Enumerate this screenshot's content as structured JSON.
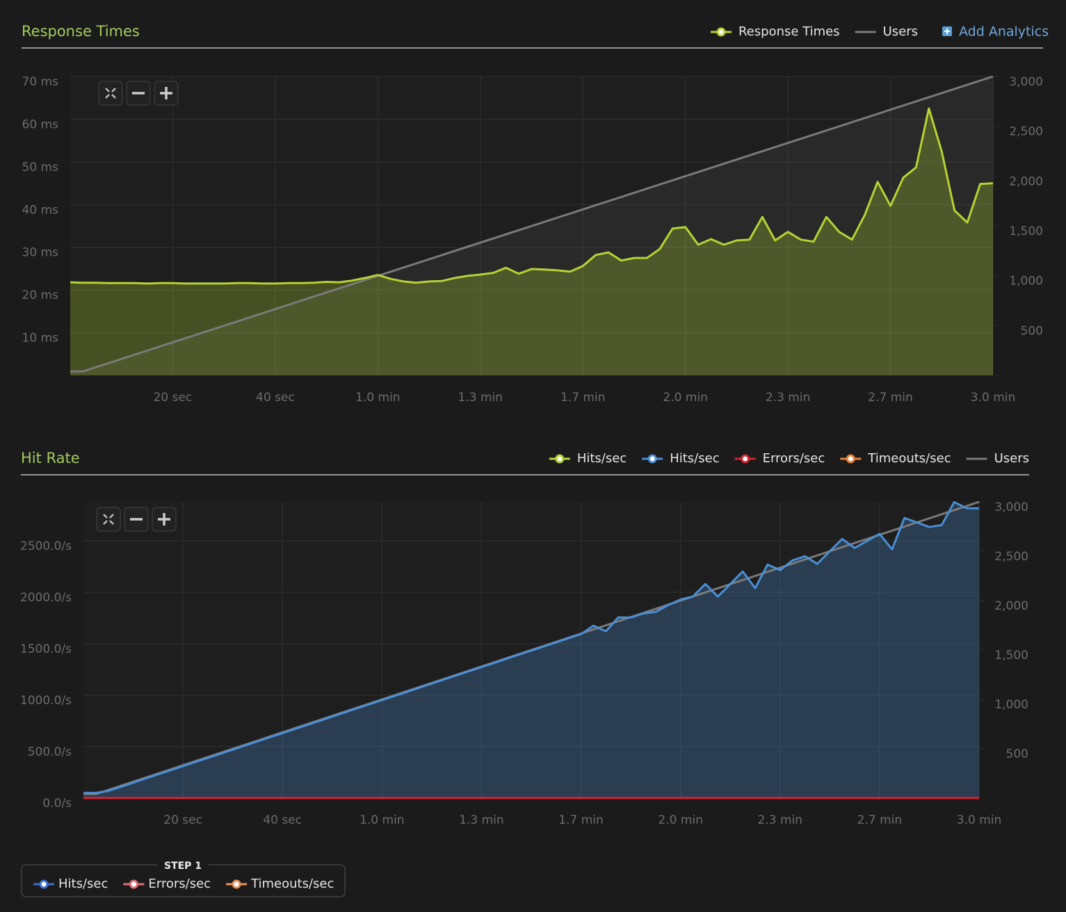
{
  "chart_data": [
    {
      "type": "line",
      "title": "Response Times",
      "x": [
        0,
        2.5,
        5,
        7.5,
        10,
        12.5,
        15,
        17.5,
        20,
        22.5,
        25,
        27.5,
        30,
        32.5,
        35,
        37.5,
        40,
        42.5,
        45,
        47.5,
        50,
        52.5,
        55,
        57.5,
        60,
        62.5,
        65,
        67.5,
        70,
        72.5,
        75,
        77.5,
        80,
        82.5,
        85,
        87.5,
        90,
        92.5,
        95,
        97.5,
        100,
        102.5,
        105,
        107.5,
        110,
        112.5,
        115,
        117.5,
        120,
        122.5,
        125,
        127.5,
        130,
        132.5,
        135,
        137.5,
        140,
        142.5,
        145,
        147.5,
        150,
        152.5,
        155,
        157.5,
        160,
        162.5,
        165,
        167.5,
        170,
        172.5,
        175,
        177.5,
        180
      ],
      "xlim": [
        0,
        180
      ],
      "xticks": [
        {
          "value": 20,
          "label": "20 sec"
        },
        {
          "value": 40,
          "label": "40 sec"
        },
        {
          "value": 60,
          "label": "1.0 min"
        },
        {
          "value": 80,
          "label": "1.3 min"
        },
        {
          "value": 100,
          "label": "1.7 min"
        },
        {
          "value": 120,
          "label": "2.0 min"
        },
        {
          "value": 140,
          "label": "2.3 min"
        },
        {
          "value": 160,
          "label": "2.7 min"
        },
        {
          "value": 180,
          "label": "3.0 min"
        }
      ],
      "ylim": [
        0,
        70
      ],
      "yticks": [
        {
          "value": 10,
          "label": "10 ms"
        },
        {
          "value": 20,
          "label": "20 ms"
        },
        {
          "value": 30,
          "label": "30 ms"
        },
        {
          "value": 40,
          "label": "40 ms"
        },
        {
          "value": 50,
          "label": "50 ms"
        },
        {
          "value": 60,
          "label": "60 ms"
        },
        {
          "value": 70,
          "label": "70 ms"
        }
      ],
      "y2lim": [
        0,
        3000
      ],
      "y2ticks": [
        500,
        {
          "value": 1000,
          "label": "1,000"
        },
        {
          "value": 1500,
          "label": "1,500"
        },
        {
          "value": 2000,
          "label": "2,000"
        },
        {
          "value": 2500,
          "label": "2,500"
        },
        {
          "value": 3000,
          "label": "3,000"
        }
      ],
      "grid": true,
      "series": [
        {
          "name": "Response Times",
          "color": "#b5d334",
          "area": true,
          "values": [
            21.8,
            21.7,
            21.7,
            21.6,
            21.6,
            21.6,
            21.5,
            21.6,
            21.6,
            21.5,
            21.5,
            21.5,
            21.5,
            21.6,
            21.6,
            21.5,
            21.5,
            21.6,
            21.6,
            21.7,
            21.9,
            21.8,
            22.2,
            22.8,
            23.5,
            22.6,
            22.0,
            21.7,
            22.0,
            22.1,
            22.8,
            23.3,
            23.6,
            24.0,
            25.2,
            23.8,
            24.9,
            24.8,
            24.6,
            24.3,
            25.6,
            28.2,
            28.8,
            26.9,
            27.5,
            27.5,
            29.6,
            34.4,
            34.7,
            30.6,
            31.9,
            30.6,
            31.6,
            31.8,
            37.1,
            31.6,
            33.6,
            31.8,
            31.3,
            37.1,
            33.6,
            31.8,
            37.6,
            45.3,
            39.7,
            46.3,
            48.7,
            62.5,
            52.4,
            38.6,
            35.8,
            44.8,
            45.0
          ]
        },
        {
          "name": "Users",
          "color": "#7a7a7a",
          "axis": "y2",
          "area": true,
          "x": [
            0,
            2.5,
            180
          ],
          "values": [
            40,
            40,
            3000
          ]
        }
      ]
    },
    {
      "type": "line",
      "title": "Hit Rate",
      "x": [
        0,
        2.5,
        5,
        7.5,
        10,
        12.5,
        15,
        17.5,
        20,
        22.5,
        25,
        27.5,
        30,
        32.5,
        35,
        37.5,
        40,
        42.5,
        45,
        47.5,
        50,
        52.5,
        55,
        57.5,
        60,
        62.5,
        65,
        67.5,
        70,
        72.5,
        75,
        77.5,
        80,
        82.5,
        85,
        87.5,
        90,
        92.5,
        95,
        97.5,
        100,
        102.5,
        105,
        107.5,
        110,
        112.5,
        115,
        117.5,
        120,
        122.5,
        125,
        127.5,
        130,
        132.5,
        135,
        137.5,
        140,
        142.5,
        145,
        147.5,
        150,
        152.5,
        155,
        157.5,
        160,
        162.5,
        165,
        167.5,
        170,
        172.5,
        175,
        177.5,
        180
      ],
      "xlim": [
        0,
        180
      ],
      "xticks": [
        {
          "value": 20,
          "label": "20 sec"
        },
        {
          "value": 40,
          "label": "40 sec"
        },
        {
          "value": 60,
          "label": "1.0 min"
        },
        {
          "value": 80,
          "label": "1.3 min"
        },
        {
          "value": 100,
          "label": "1.7 min"
        },
        {
          "value": 120,
          "label": "2.0 min"
        },
        {
          "value": 140,
          "label": "2.3 min"
        },
        {
          "value": 160,
          "label": "2.7 min"
        },
        {
          "value": 180,
          "label": "3.0 min"
        }
      ],
      "ylim": [
        0,
        2880
      ],
      "yticks": [
        {
          "value": 0,
          "label": "0.0/s"
        },
        {
          "value": 500,
          "label": "500.0/s"
        },
        {
          "value": 1000,
          "label": "1000.0/s"
        },
        {
          "value": 1500,
          "label": "1500.0/s"
        },
        {
          "value": 2000,
          "label": "2000.0/s"
        },
        {
          "value": 2500,
          "label": "2500.0/s"
        }
      ],
      "y2lim": [
        0,
        3000
      ],
      "y2ticks": [
        500,
        {
          "value": 1000,
          "label": "1,000"
        },
        {
          "value": 1500,
          "label": "1,500"
        },
        {
          "value": 2000,
          "label": "2,000"
        },
        {
          "value": 2500,
          "label": "2,500"
        },
        {
          "value": 3000,
          "label": "3,000"
        }
      ],
      "grid": true,
      "series": [
        {
          "name": "Hits/sec",
          "color": "#b5d334"
        },
        {
          "name": "Hits/sec",
          "color": "#4a8fd6",
          "area": true,
          "values": [
            50,
            50,
            69,
            109,
            149,
            189,
            230,
            270,
            310,
            350,
            390,
            430,
            470,
            511,
            551,
            591,
            631,
            671,
            711,
            751,
            792,
            832,
            872,
            912,
            952,
            992,
            1032,
            1073,
            1113,
            1153,
            1193,
            1233,
            1273,
            1313,
            1354,
            1394,
            1434,
            1474,
            1514,
            1554,
            1594,
            1676,
            1622,
            1757,
            1755,
            1795,
            1810,
            1876,
            1930,
            1960,
            2081,
            1959,
            2080,
            2203,
            2041,
            2270,
            2216,
            2311,
            2351,
            2277,
            2400,
            2520,
            2432,
            2500,
            2568,
            2419,
            2723,
            2680,
            2635,
            2655,
            2878,
            2818,
            2818
          ]
        },
        {
          "name": "Errors/sec",
          "color": "#d8232f",
          "values": [
            0,
            0,
            0,
            0,
            0,
            0,
            0,
            0,
            0,
            0,
            0,
            0,
            0,
            0,
            0,
            0,
            0,
            0,
            0,
            0,
            0,
            0,
            0,
            0,
            0,
            0,
            0,
            0,
            0,
            0,
            0,
            0,
            0,
            0,
            0,
            0,
            0,
            0,
            0,
            0,
            0,
            0,
            0,
            0,
            0,
            0,
            0,
            0,
            0,
            0,
            0,
            0,
            0,
            0,
            0,
            0,
            0,
            0,
            0,
            0,
            0,
            0,
            0,
            0,
            0,
            0,
            0,
            0,
            0,
            0,
            0,
            0,
            0
          ]
        },
        {
          "name": "Timeouts/sec",
          "color": "#e8833a",
          "values": [
            0,
            0,
            0,
            0,
            0,
            0,
            0,
            0,
            0,
            0,
            0,
            0,
            0,
            0,
            0,
            0,
            0,
            0,
            0,
            0,
            0,
            0,
            0,
            0,
            0,
            0,
            0,
            0,
            0,
            0,
            0,
            0,
            0,
            0,
            0,
            0,
            0,
            0,
            0,
            0,
            0,
            0,
            0,
            0,
            0,
            0,
            0,
            0,
            0,
            0,
            0,
            0,
            0,
            0,
            0,
            0,
            0,
            0,
            0,
            0,
            0,
            0,
            0,
            0,
            0,
            0,
            0,
            0,
            0,
            0,
            0,
            0,
            0
          ]
        },
        {
          "name": "Users",
          "color": "#7a7a7a",
          "axis": "y2",
          "x": [
            0,
            2.5,
            180
          ],
          "values": [
            40,
            40,
            3000
          ]
        }
      ]
    }
  ],
  "add_analytics": "Add Analytics",
  "step_legend": {
    "title": "STEP 1",
    "items": [
      {
        "name": "Hits/sec",
        "color": "#3a6fd0"
      },
      {
        "name": "Errors/sec",
        "color": "#e0707a"
      },
      {
        "name": "Timeouts/sec",
        "color": "#e8935a"
      }
    ]
  }
}
